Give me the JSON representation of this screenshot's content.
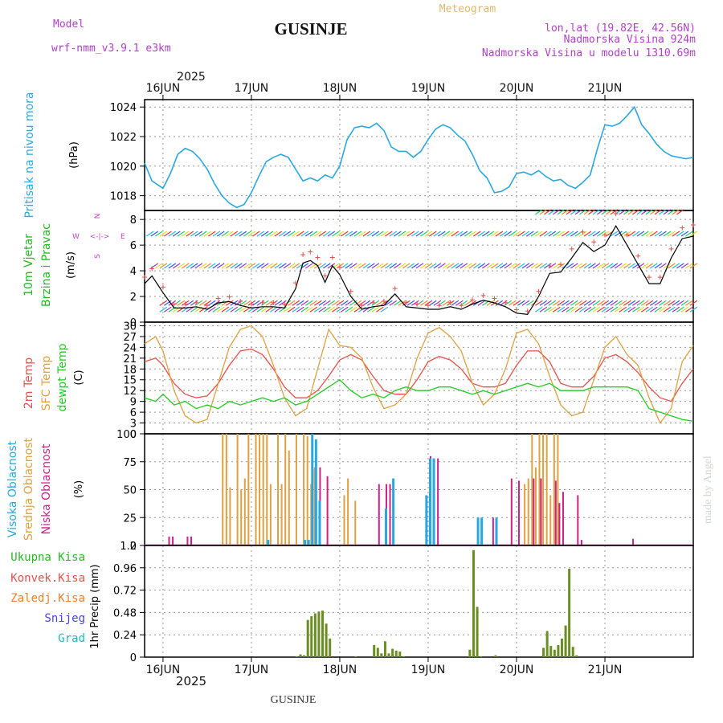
{
  "header": {
    "app_title": "Meteogram",
    "location": "GUSINJE",
    "model_label": "Model",
    "model_name": "wrf-nmm_v3.9.1  e3km",
    "lonlat": "lon,lat (19.82E, 42.56N)",
    "elevation": "Nadmorska Visina 924m",
    "model_elevation": "Nadmorska Visina u modelu 1310.69m",
    "year_top": "2025",
    "year_bottom": "2025",
    "footer_location": "GUSINJE",
    "watermark": "made by Angel"
  },
  "colors": {
    "pressure": "#29a8e0",
    "wind_label": "#22bb22",
    "temp2m": "#e8504a",
    "sfc": "#e0a040",
    "dewpt": "#22cc22",
    "cloud_high": "#29a8e0",
    "cloud_mid": "#e0a040",
    "cloud_low": "#cc2288",
    "precip_total": "#22bb22",
    "precip_conv": "#e8504a",
    "precip_frz": "#f08030",
    "snow": "#4444ee",
    "hail": "#22bbbb",
    "compass": "#cc44cc"
  },
  "chart_data": [
    {
      "type": "line",
      "title": "Pritisak na nivou mora",
      "ylabel": "(hPa)",
      "ylim": [
        1017,
        1024.5
      ],
      "yticks": [
        "1018",
        "1020",
        "1022",
        "1024"
      ],
      "x_hours": [
        0,
        24,
        48,
        72,
        96,
        120
      ],
      "x_start_hour": -5,
      "x_end_hour": 144,
      "date_labels": [
        "16JUN",
        "17JUN",
        "18JUN",
        "19JUN",
        "20JUN",
        "21JUN"
      ],
      "series": [
        {
          "name": "pressure",
          "x": [
            -5,
            -3,
            0,
            2,
            4,
            6,
            8,
            10,
            12,
            14,
            16,
            18,
            20,
            22,
            24,
            26,
            28,
            30,
            32,
            34,
            36,
            38,
            40,
            42,
            44,
            46,
            48,
            50,
            52,
            54,
            56,
            58,
            60,
            62,
            64,
            66,
            68,
            70,
            72,
            74,
            76,
            78,
            80,
            82,
            84,
            86,
            88,
            90,
            92,
            94,
            96,
            98,
            100,
            102,
            104,
            106,
            108,
            110,
            112,
            114,
            116,
            118,
            120,
            122,
            124,
            126,
            128,
            130,
            132,
            134,
            136,
            138,
            140,
            142,
            144
          ],
          "values": [
            1020.2,
            1019.0,
            1018.5,
            1019.5,
            1020.8,
            1021.2,
            1021.0,
            1020.5,
            1019.8,
            1018.8,
            1018.0,
            1017.5,
            1017.2,
            1017.4,
            1018.2,
            1019.3,
            1020.3,
            1020.6,
            1020.8,
            1020.6,
            1019.8,
            1019.0,
            1019.2,
            1019.0,
            1019.4,
            1019.2,
            1020.0,
            1021.8,
            1022.6,
            1022.7,
            1022.6,
            1022.9,
            1022.4,
            1021.3,
            1021.0,
            1021.0,
            1020.6,
            1021.0,
            1021.8,
            1022.5,
            1022.8,
            1022.6,
            1022.1,
            1021.7,
            1020.8,
            1019.7,
            1019.2,
            1018.2,
            1018.3,
            1018.6,
            1019.5,
            1019.6,
            1019.4,
            1019.7,
            1019.3,
            1019.0,
            1019.1,
            1018.7,
            1018.5,
            1018.9,
            1019.4,
            1021.2,
            1022.8,
            1022.7,
            1022.9,
            1023.4,
            1024.0,
            1022.8,
            1022.2,
            1021.5,
            1021.0,
            1020.7,
            1020.6,
            1020.5,
            1020.6
          ]
        }
      ]
    },
    {
      "type": "line",
      "title": "10m Vjetar",
      "subtitle": "Brzina i Pravac",
      "ylabel": "(m/s)",
      "ylim": [
        0,
        8.7
      ],
      "yticks": [
        "0",
        "2",
        "4",
        "6",
        "8"
      ],
      "compass": {
        "n": "N",
        "s": "S",
        "e": "E",
        "w": "W",
        "arrow": "<-|->"
      },
      "series": [
        {
          "name": "wind_speed",
          "x": [
            -5,
            -3,
            0,
            3,
            6,
            9,
            12,
            15,
            18,
            21,
            24,
            27,
            30,
            33,
            36,
            38,
            40,
            42,
            44,
            46,
            48,
            51,
            54,
            57,
            60,
            63,
            66,
            69,
            72,
            75,
            78,
            81,
            84,
            87,
            90,
            93,
            96,
            99,
            102,
            105,
            108,
            111,
            114,
            117,
            120,
            123,
            126,
            129,
            132,
            135,
            138,
            141,
            144
          ],
          "values": [
            3.0,
            3.6,
            2.3,
            1.1,
            1.1,
            1.2,
            1.0,
            1.5,
            1.6,
            1.3,
            1.1,
            1.2,
            1.2,
            1.1,
            2.6,
            4.6,
            4.8,
            4.4,
            3.1,
            4.4,
            3.7,
            2.0,
            1.0,
            1.2,
            1.3,
            2.2,
            1.2,
            1.1,
            1.0,
            1.0,
            1.2,
            1.0,
            1.4,
            1.7,
            1.5,
            1.2,
            0.7,
            0.6,
            2.0,
            3.8,
            3.9,
            5.0,
            6.2,
            5.5,
            6.0,
            7.5,
            6.0,
            4.5,
            3.0,
            3.0,
            5.0,
            6.5,
            6.7
          ]
        }
      ]
    },
    {
      "type": "line",
      "title": "2m Temp",
      "ylabel": "(C)",
      "ylim": [
        0,
        31
      ],
      "yticks": [
        "0",
        "3",
        "6",
        "9",
        "12",
        "15",
        "18",
        "21",
        "24",
        "27",
        "30"
      ],
      "legend": [
        "2m Temp",
        "SFC Temp",
        "dewpt Temp"
      ],
      "series": [
        {
          "name": "2m Temp",
          "x": [
            -5,
            -2,
            0,
            3,
            6,
            9,
            12,
            15,
            18,
            21,
            24,
            27,
            30,
            33,
            36,
            39,
            42,
            45,
            48,
            51,
            54,
            57,
            60,
            63,
            66,
            69,
            72,
            75,
            78,
            81,
            84,
            87,
            90,
            93,
            96,
            99,
            102,
            105,
            108,
            111,
            114,
            117,
            120,
            123,
            126,
            129,
            132,
            135,
            138,
            141,
            144
          ],
          "values": [
            20,
            21,
            19,
            14,
            11,
            10,
            10.5,
            14,
            19,
            23,
            23.5,
            22,
            18,
            13,
            10,
            10,
            12,
            16,
            20.5,
            22,
            20.5,
            16,
            12,
            11,
            11,
            15,
            20,
            21.5,
            20.5,
            18,
            14,
            13,
            13,
            14,
            19,
            23,
            23,
            20,
            14,
            13,
            13,
            16,
            21,
            22,
            20,
            17,
            13,
            10,
            9,
            14,
            18
          ]
        },
        {
          "name": "SFC Temp",
          "x": [
            -5,
            -2,
            0,
            3,
            6,
            9,
            12,
            15,
            18,
            21,
            24,
            27,
            30,
            33,
            36,
            39,
            42,
            45,
            48,
            51,
            54,
            57,
            60,
            63,
            66,
            69,
            72,
            75,
            78,
            81,
            84,
            87,
            90,
            93,
            96,
            99,
            102,
            105,
            108,
            111,
            114,
            117,
            120,
            123,
            126,
            129,
            132,
            135,
            138,
            141,
            144
          ],
          "values": [
            25,
            27,
            23,
            12,
            5,
            3,
            4,
            14,
            24,
            29,
            30,
            27,
            19,
            10,
            5,
            7,
            18,
            29,
            24.5,
            24,
            21,
            13,
            7,
            8,
            11,
            21,
            28,
            29.5,
            27,
            23,
            14,
            8,
            11,
            18,
            28,
            29,
            25,
            16,
            8,
            5,
            6,
            15,
            24,
            27,
            22,
            19,
            10,
            3,
            7,
            20,
            24.5
          ]
        },
        {
          "name": "dewpt Temp",
          "x": [
            -5,
            -2,
            0,
            3,
            6,
            9,
            12,
            15,
            18,
            21,
            24,
            27,
            30,
            33,
            36,
            39,
            42,
            45,
            48,
            51,
            54,
            57,
            60,
            63,
            66,
            69,
            72,
            75,
            78,
            81,
            84,
            87,
            90,
            93,
            96,
            99,
            102,
            105,
            108,
            111,
            114,
            117,
            120,
            123,
            126,
            129,
            132,
            135,
            138,
            141,
            144
          ],
          "values": [
            10,
            9,
            11,
            8,
            9,
            7,
            8,
            7,
            9,
            8,
            9,
            10,
            9,
            10,
            8,
            9,
            11,
            13,
            15,
            12,
            10,
            11,
            10,
            12,
            13,
            12,
            12,
            13,
            13,
            12,
            11,
            12,
            11,
            12,
            13,
            14,
            13,
            14,
            12,
            12,
            12,
            13,
            13,
            13,
            13,
            12,
            7,
            6,
            5,
            4,
            3.5
          ]
        }
      ]
    },
    {
      "type": "bar",
      "title": "Visoka Oblacnost",
      "ylabel": "(%)",
      "ylim": [
        0,
        100
      ],
      "yticks": [
        "0",
        "25",
        "50",
        "75",
        "100"
      ],
      "legend": [
        "Visoka Oblacnost",
        "Srednja Oblacnost",
        "Niska Oblacnost"
      ],
      "series": [
        {
          "name": "Srednja Oblacnost",
          "x": [
            16,
            17,
            18,
            20,
            21,
            22,
            23,
            25,
            26,
            27,
            28,
            29,
            31,
            32,
            33,
            34,
            36,
            38,
            39,
            40,
            41,
            49,
            50,
            52,
            98,
            99,
            100,
            101,
            102,
            103,
            104,
            105,
            106,
            107
          ],
          "values": [
            100,
            100,
            52,
            100,
            50,
            60,
            100,
            100,
            100,
            100,
            100,
            55,
            100,
            55,
            100,
            85,
            100,
            100,
            98,
            55,
            70,
            45,
            60,
            40,
            55,
            60,
            100,
            70,
            100,
            100,
            100,
            45,
            100,
            100
          ]
        },
        {
          "name": "Niska Oblacnost",
          "x": [
            1,
            2,
            6,
            7,
            40,
            42,
            44,
            58,
            60,
            61,
            72,
            74,
            89,
            90,
            94,
            96,
            100,
            102,
            106,
            107,
            108,
            112,
            113,
            127
          ],
          "values": [
            8,
            8,
            8,
            8,
            68,
            70,
            62,
            55,
            55,
            55,
            80,
            78,
            25,
            18,
            60,
            58,
            60,
            60,
            58,
            38,
            48,
            45,
            5,
            6
          ]
        },
        {
          "name": "Visoka Oblacnost",
          "x": [
            28,
            38,
            39,
            40,
            41,
            42,
            60,
            62,
            71,
            72,
            73,
            85,
            86,
            90
          ],
          "values": [
            5,
            5,
            5,
            100,
            95,
            40,
            33,
            60,
            45,
            78,
            78,
            25,
            25,
            25
          ]
        }
      ]
    },
    {
      "type": "bar",
      "title": "Ukupna Kisa",
      "ylabel": "1hr Precip (mm)",
      "ylim": [
        0,
        1.2
      ],
      "yticks": [
        "0",
        "0.24",
        "0.48",
        "0.72",
        "0.96",
        "1.2"
      ],
      "legend": [
        "Ukupna Kisa",
        "Konvek.Kisa",
        "Zaledj.Kisa",
        "Snijeg",
        "Grad"
      ],
      "series": [
        {
          "name": "Ukupna Kisa",
          "x": [
            36,
            37,
            38,
            39,
            40,
            41,
            42,
            43,
            44,
            45,
            52,
            57,
            58,
            59,
            60,
            61,
            62,
            63,
            64,
            65,
            83,
            84,
            85,
            86,
            90,
            103,
            104,
            105,
            106,
            107,
            108,
            109,
            110,
            111,
            112
          ],
          "values": [
            0.01,
            0.03,
            0.02,
            0.4,
            0.44,
            0.47,
            0.49,
            0.5,
            0.36,
            0.2,
            0.01,
            0.13,
            0.1,
            0.04,
            0.17,
            0.04,
            0.09,
            0.07,
            0.06,
            0.01,
            0.08,
            1.15,
            0.54,
            0.01,
            0.02,
            0.1,
            0.28,
            0.12,
            0.08,
            0.13,
            0.2,
            0.34,
            0.95,
            0.11,
            0.02
          ]
        }
      ]
    }
  ]
}
